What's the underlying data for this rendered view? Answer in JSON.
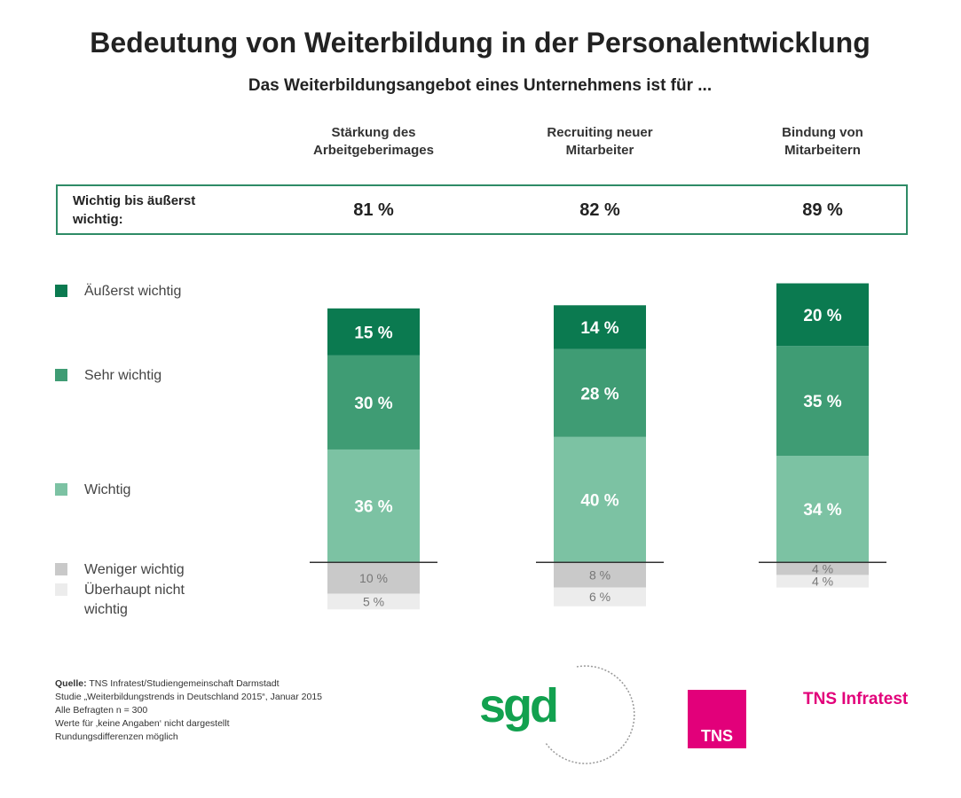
{
  "chart_data": {
    "type": "diverging-stacked-bar",
    "title": "Bedeutung von Weiterbildung in der Personalentwicklung",
    "subtitle": "Das Weiterbildungsangebot eines Unternehmens ist für ...",
    "categories": [
      "Stärkung des Arbeitgeberimages",
      "Recruiting neuer Mitarbeiter",
      "Bindung von Mitarbeitern"
    ],
    "summary": {
      "label": "Wichtig bis äußerst wichtig:",
      "values": [
        81,
        82,
        89
      ],
      "value_labels": [
        "81 %",
        "82 %",
        "89 %"
      ]
    },
    "series": [
      {
        "name": "Äußerst wichtig",
        "color": "#0b7a50",
        "stack": "above",
        "values": [
          15,
          14,
          20
        ],
        "value_labels": [
          "15 %",
          "14 %",
          "20 %"
        ]
      },
      {
        "name": "Sehr wichtig",
        "color": "#3f9c74",
        "stack": "above",
        "values": [
          30,
          28,
          35
        ],
        "value_labels": [
          "30 %",
          "28 %",
          "35 %"
        ]
      },
      {
        "name": "Wichtig",
        "color": "#7cc2a3",
        "stack": "above",
        "values": [
          36,
          40,
          34
        ],
        "value_labels": [
          "36 %",
          "40 %",
          "34 %"
        ]
      },
      {
        "name": "Weniger wichtig",
        "color": "#c9c9c9",
        "stack": "below",
        "values": [
          10,
          8,
          4
        ],
        "value_labels": [
          "10 %",
          "8 %",
          "4 %"
        ]
      },
      {
        "name": "Überhaupt nicht wichtig",
        "color": "#ececec",
        "stack": "below",
        "values": [
          5,
          6,
          4
        ],
        "value_labels": [
          "5 %",
          "6 %",
          "4 %"
        ]
      }
    ],
    "ylim": [
      -20,
      90
    ],
    "source": {
      "label": "Quelle:",
      "first_line": "TNS Infratest/Studiengemeinschaft Darmstadt",
      "lines": [
        "Studie „Weiterbildungstrends in Deutschland 2015“, Januar 2015",
        "Alle Befragten n = 300",
        "Werte für ‚keine Angaben‘ nicht dargestellt",
        "Rundungsdifferenzen möglich"
      ]
    },
    "logos": {
      "sgd": "sgd",
      "tns": "TNS",
      "tns_infratest": "TNS Infratest"
    }
  }
}
